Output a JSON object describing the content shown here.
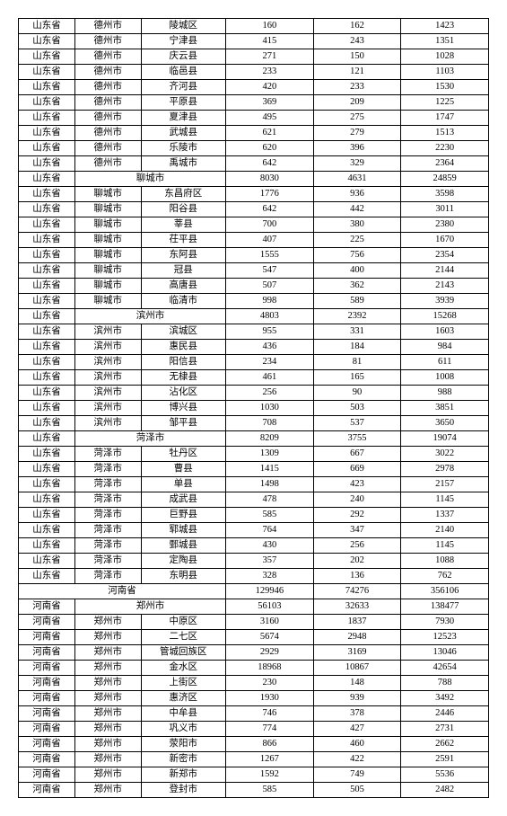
{
  "colors": {
    "border": "#000000",
    "background": "#ffffff",
    "text": "#000000"
  },
  "font": {
    "family": "SimSun",
    "size_pt": 10.5
  },
  "columns": 6,
  "rows": [
    [
      "山东省",
      "德州市",
      "陵城区",
      "160",
      "162",
      "1423"
    ],
    [
      "山东省",
      "德州市",
      "宁津县",
      "415",
      "243",
      "1351"
    ],
    [
      "山东省",
      "德州市",
      "庆云县",
      "271",
      "150",
      "1028"
    ],
    [
      "山东省",
      "德州市",
      "临邑县",
      "233",
      "121",
      "1103"
    ],
    [
      "山东省",
      "德州市",
      "齐河县",
      "420",
      "233",
      "1530"
    ],
    [
      "山东省",
      "德州市",
      "平原县",
      "369",
      "209",
      "1225"
    ],
    [
      "山东省",
      "德州市",
      "夏津县",
      "495",
      "275",
      "1747"
    ],
    [
      "山东省",
      "德州市",
      "武城县",
      "621",
      "279",
      "1513"
    ],
    [
      "山东省",
      "德州市",
      "乐陵市",
      "620",
      "396",
      "2230"
    ],
    [
      "山东省",
      "德州市",
      "禹城市",
      "642",
      "329",
      "2364"
    ],
    {
      "span": [
        1,
        2
      ],
      "cells": [
        "山东省",
        "聊城市",
        "8030",
        "4631",
        "24859"
      ]
    },
    [
      "山东省",
      "聊城市",
      "东昌府区",
      "1776",
      "936",
      "3598"
    ],
    [
      "山东省",
      "聊城市",
      "阳谷县",
      "642",
      "442",
      "3011"
    ],
    [
      "山东省",
      "聊城市",
      "莘县",
      "700",
      "380",
      "2380"
    ],
    [
      "山东省",
      "聊城市",
      "茌平县",
      "407",
      "225",
      "1670"
    ],
    [
      "山东省",
      "聊城市",
      "东阿县",
      "1555",
      "756",
      "2354"
    ],
    [
      "山东省",
      "聊城市",
      "冠县",
      "547",
      "400",
      "2144"
    ],
    [
      "山东省",
      "聊城市",
      "高唐县",
      "507",
      "362",
      "2143"
    ],
    [
      "山东省",
      "聊城市",
      "临清市",
      "998",
      "589",
      "3939"
    ],
    {
      "span": [
        1,
        2
      ],
      "cells": [
        "山东省",
        "滨州市",
        "4803",
        "2392",
        "15268"
      ]
    },
    [
      "山东省",
      "滨州市",
      "滨城区",
      "955",
      "331",
      "1603"
    ],
    [
      "山东省",
      "滨州市",
      "惠民县",
      "436",
      "184",
      "984"
    ],
    [
      "山东省",
      "滨州市",
      "阳信县",
      "234",
      "81",
      "611"
    ],
    [
      "山东省",
      "滨州市",
      "无棣县",
      "461",
      "165",
      "1008"
    ],
    [
      "山东省",
      "滨州市",
      "沾化区",
      "256",
      "90",
      "988"
    ],
    [
      "山东省",
      "滨州市",
      "博兴县",
      "1030",
      "503",
      "3851"
    ],
    [
      "山东省",
      "滨州市",
      "邹平县",
      "708",
      "537",
      "3650"
    ],
    {
      "span": [
        1,
        2
      ],
      "cells": [
        "山东省",
        "菏泽市",
        "8209",
        "3755",
        "19074"
      ]
    },
    [
      "山东省",
      "菏泽市",
      "牡丹区",
      "1309",
      "667",
      "3022"
    ],
    [
      "山东省",
      "菏泽市",
      "曹县",
      "1415",
      "669",
      "2978"
    ],
    [
      "山东省",
      "菏泽市",
      "单县",
      "1498",
      "423",
      "2157"
    ],
    [
      "山东省",
      "菏泽市",
      "成武县",
      "478",
      "240",
      "1145"
    ],
    [
      "山东省",
      "菏泽市",
      "巨野县",
      "585",
      "292",
      "1337"
    ],
    [
      "山东省",
      "菏泽市",
      "郓城县",
      "764",
      "347",
      "2140"
    ],
    [
      "山东省",
      "菏泽市",
      "鄄城县",
      "430",
      "256",
      "1145"
    ],
    [
      "山东省",
      "菏泽市",
      "定陶县",
      "357",
      "202",
      "1088"
    ],
    [
      "山东省",
      "菏泽市",
      "东明县",
      "328",
      "136",
      "762"
    ],
    {
      "span": [
        0,
        3
      ],
      "cells": [
        "河南省",
        "129946",
        "74276",
        "356106"
      ]
    },
    {
      "span": [
        1,
        2
      ],
      "cells": [
        "河南省",
        "郑州市",
        "56103",
        "32633",
        "138477"
      ]
    },
    [
      "河南省",
      "郑州市",
      "中原区",
      "3160",
      "1837",
      "7930"
    ],
    [
      "河南省",
      "郑州市",
      "二七区",
      "5674",
      "2948",
      "12523"
    ],
    [
      "河南省",
      "郑州市",
      "管城回族区",
      "2929",
      "3169",
      "13046"
    ],
    [
      "河南省",
      "郑州市",
      "金水区",
      "18968",
      "10867",
      "42654"
    ],
    [
      "河南省",
      "郑州市",
      "上街区",
      "230",
      "148",
      "788"
    ],
    [
      "河南省",
      "郑州市",
      "惠济区",
      "1930",
      "939",
      "3492"
    ],
    [
      "河南省",
      "郑州市",
      "中牟县",
      "746",
      "378",
      "2446"
    ],
    [
      "河南省",
      "郑州市",
      "巩义市",
      "774",
      "427",
      "2731"
    ],
    [
      "河南省",
      "郑州市",
      "荥阳市",
      "866",
      "460",
      "2662"
    ],
    [
      "河南省",
      "郑州市",
      "新密市",
      "1267",
      "422",
      "2591"
    ],
    [
      "河南省",
      "郑州市",
      "新郑市",
      "1592",
      "749",
      "5536"
    ],
    [
      "河南省",
      "郑州市",
      "登封市",
      "585",
      "505",
      "2482"
    ]
  ]
}
